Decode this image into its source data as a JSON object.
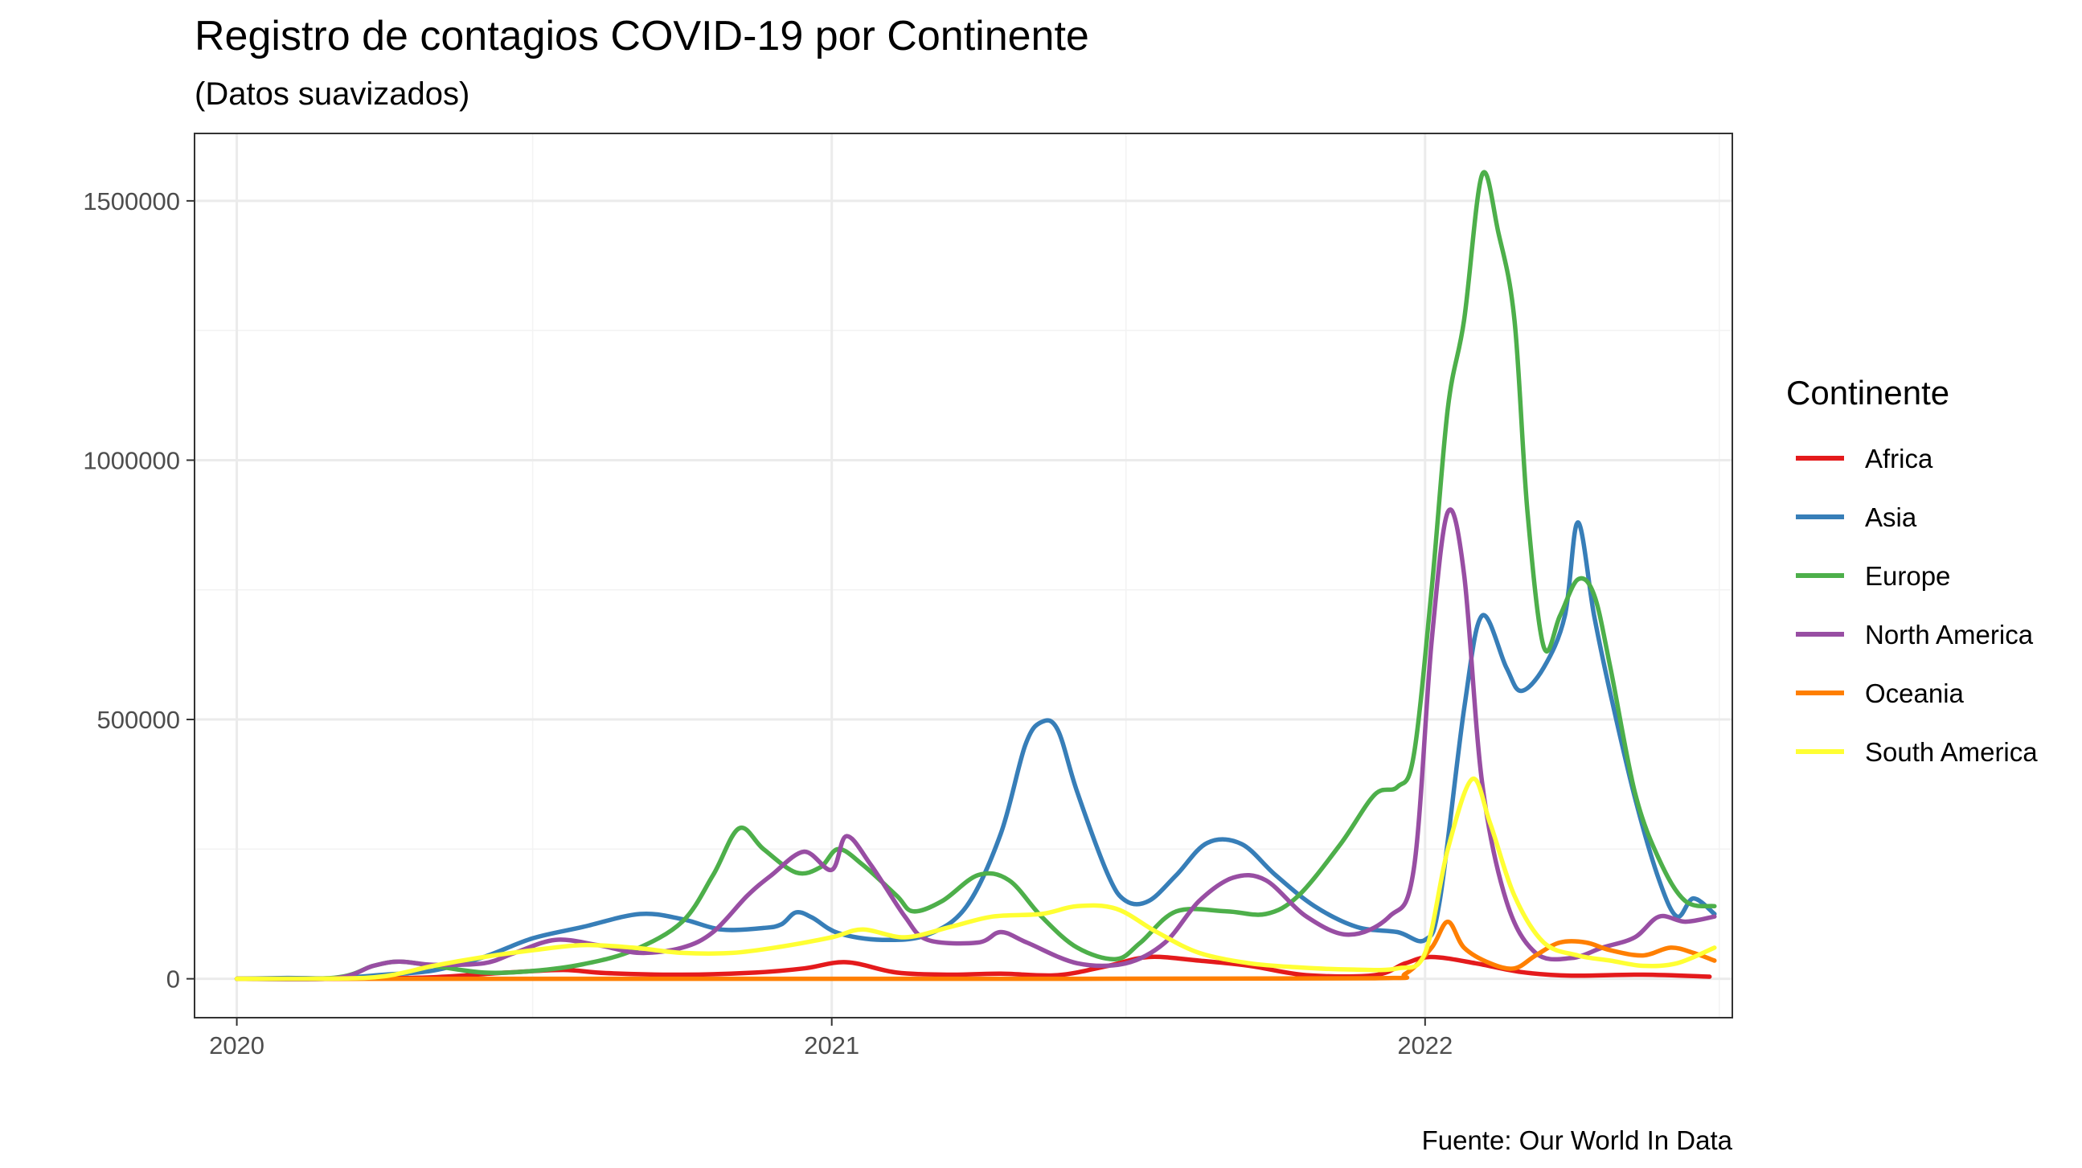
{
  "chart_data": {
    "type": "line",
    "title": "Registro de contagios COVID-19 por Continente",
    "subtitle": "(Datos suavizados)",
    "caption": "Fuente: Our World In Data",
    "xlabel": "",
    "ylabel": "",
    "x_type": "date",
    "xlim": [
      "2019-12-06",
      "2022-07-09"
    ],
    "ylim": [
      -75000,
      1630000
    ],
    "x_ticks": [
      {
        "date": "2020-01-01",
        "label": "2020"
      },
      {
        "date": "2021-01-01",
        "label": "2021"
      },
      {
        "date": "2022-01-01",
        "label": "2022"
      }
    ],
    "x_minor_ticks": [
      "2020-07-01",
      "2021-07-01",
      "2022-07-01"
    ],
    "y_ticks": [
      {
        "value": 0,
        "label": "0"
      },
      {
        "value": 500000,
        "label": "500000"
      },
      {
        "value": 1000000,
        "label": "1000000"
      },
      {
        "value": 1500000,
        "label": "1500000"
      }
    ],
    "y_minor_ticks": [
      250000,
      750000,
      1250000
    ],
    "grid": true,
    "legend": {
      "title": "Continente",
      "position": "right"
    },
    "series": [
      {
        "name": "Africa",
        "color": "#E41A1C",
        "points": [
          [
            "2020-01-01",
            0
          ],
          [
            "2020-03-15",
            300
          ],
          [
            "2020-05-01",
            3000
          ],
          [
            "2020-06-15",
            12000
          ],
          [
            "2020-07-20",
            17000
          ],
          [
            "2020-08-15",
            11000
          ],
          [
            "2020-10-01",
            8000
          ],
          [
            "2020-11-15",
            12000
          ],
          [
            "2020-12-15",
            20000
          ],
          [
            "2021-01-10",
            32000
          ],
          [
            "2021-02-10",
            12000
          ],
          [
            "2021-03-15",
            8000
          ],
          [
            "2021-04-15",
            10000
          ],
          [
            "2021-05-20",
            7000
          ],
          [
            "2021-06-20",
            25000
          ],
          [
            "2021-07-15",
            42000
          ],
          [
            "2021-08-15",
            35000
          ],
          [
            "2021-09-15",
            25000
          ],
          [
            "2021-10-20",
            7000
          ],
          [
            "2021-12-01",
            7000
          ],
          [
            "2021-12-20",
            30000
          ],
          [
            "2022-01-05",
            42000
          ],
          [
            "2022-02-01",
            30000
          ],
          [
            "2022-03-01",
            13000
          ],
          [
            "2022-04-01",
            6000
          ],
          [
            "2022-05-15",
            8000
          ],
          [
            "2022-06-25",
            4000
          ]
        ]
      },
      {
        "name": "Asia",
        "color": "#377EB8",
        "points": [
          [
            "2020-01-01",
            0
          ],
          [
            "2020-02-01",
            1500
          ],
          [
            "2020-03-01",
            1000
          ],
          [
            "2020-04-01",
            8000
          ],
          [
            "2020-05-01",
            16000
          ],
          [
            "2020-06-01",
            42000
          ],
          [
            "2020-07-01",
            78000
          ],
          [
            "2020-08-01",
            100000
          ],
          [
            "2020-09-05",
            125000
          ],
          [
            "2020-10-01",
            115000
          ],
          [
            "2020-10-25",
            95000
          ],
          [
            "2020-11-20",
            98000
          ],
          [
            "2020-12-01",
            105000
          ],
          [
            "2020-12-10",
            128000
          ],
          [
            "2020-12-20",
            118000
          ],
          [
            "2021-01-05",
            88000
          ],
          [
            "2021-02-01",
            75000
          ],
          [
            "2021-03-01",
            85000
          ],
          [
            "2021-03-25",
            140000
          ],
          [
            "2021-04-15",
            280000
          ],
          [
            "2021-04-30",
            450000
          ],
          [
            "2021-05-10",
            495000
          ],
          [
            "2021-05-20",
            480000
          ],
          [
            "2021-06-01",
            360000
          ],
          [
            "2021-06-20",
            200000
          ],
          [
            "2021-07-01",
            150000
          ],
          [
            "2021-07-15",
            150000
          ],
          [
            "2021-08-01",
            200000
          ],
          [
            "2021-08-20",
            262000
          ],
          [
            "2021-09-10",
            260000
          ],
          [
            "2021-10-01",
            200000
          ],
          [
            "2021-10-25",
            140000
          ],
          [
            "2021-11-20",
            100000
          ],
          [
            "2021-12-15",
            90000
          ],
          [
            "2022-01-01",
            75000
          ],
          [
            "2022-01-10",
            150000
          ],
          [
            "2022-01-25",
            520000
          ],
          [
            "2022-02-05",
            700000
          ],
          [
            "2022-02-20",
            600000
          ],
          [
            "2022-03-01",
            555000
          ],
          [
            "2022-03-15",
            600000
          ],
          [
            "2022-03-28",
            700000
          ],
          [
            "2022-04-05",
            880000
          ],
          [
            "2022-04-15",
            700000
          ],
          [
            "2022-04-25",
            550000
          ],
          [
            "2022-05-10",
            350000
          ],
          [
            "2022-05-25",
            190000
          ],
          [
            "2022-06-05",
            120000
          ],
          [
            "2022-06-15",
            155000
          ],
          [
            "2022-06-28",
            125000
          ]
        ]
      },
      {
        "name": "Europe",
        "color": "#4DAF4A",
        "points": [
          [
            "2020-01-01",
            0
          ],
          [
            "2020-03-01",
            2000
          ],
          [
            "2020-03-25",
            25000
          ],
          [
            "2020-04-10",
            33000
          ],
          [
            "2020-05-01",
            25000
          ],
          [
            "2020-06-01",
            12000
          ],
          [
            "2020-07-01",
            15000
          ],
          [
            "2020-08-01",
            28000
          ],
          [
            "2020-09-01",
            55000
          ],
          [
            "2020-10-01",
            110000
          ],
          [
            "2020-10-20",
            200000
          ],
          [
            "2020-11-05",
            290000
          ],
          [
            "2020-11-20",
            250000
          ],
          [
            "2020-12-10",
            205000
          ],
          [
            "2020-12-25",
            215000
          ],
          [
            "2021-01-05",
            250000
          ],
          [
            "2021-01-20",
            220000
          ],
          [
            "2021-02-10",
            160000
          ],
          [
            "2021-02-20",
            130000
          ],
          [
            "2021-03-10",
            150000
          ],
          [
            "2021-04-01",
            200000
          ],
          [
            "2021-04-20",
            190000
          ],
          [
            "2021-05-10",
            120000
          ],
          [
            "2021-06-01",
            60000
          ],
          [
            "2021-06-25",
            38000
          ],
          [
            "2021-07-10",
            70000
          ],
          [
            "2021-08-01",
            130000
          ],
          [
            "2021-09-01",
            130000
          ],
          [
            "2021-09-25",
            125000
          ],
          [
            "2021-10-15",
            160000
          ],
          [
            "2021-11-10",
            260000
          ],
          [
            "2021-12-01",
            355000
          ],
          [
            "2021-12-15",
            370000
          ],
          [
            "2021-12-25",
            430000
          ],
          [
            "2022-01-05",
            750000
          ],
          [
            "2022-01-15",
            1100000
          ],
          [
            "2022-01-25",
            1270000
          ],
          [
            "2022-02-05",
            1550000
          ],
          [
            "2022-02-15",
            1440000
          ],
          [
            "2022-02-25",
            1270000
          ],
          [
            "2022-03-05",
            900000
          ],
          [
            "2022-03-15",
            640000
          ],
          [
            "2022-03-25",
            700000
          ],
          [
            "2022-04-05",
            770000
          ],
          [
            "2022-04-15",
            740000
          ],
          [
            "2022-04-25",
            600000
          ],
          [
            "2022-05-10",
            360000
          ],
          [
            "2022-05-25",
            230000
          ],
          [
            "2022-06-10",
            150000
          ],
          [
            "2022-06-28",
            140000
          ]
        ]
      },
      {
        "name": "North America",
        "color": "#984EA3",
        "points": [
          [
            "2020-01-01",
            0
          ],
          [
            "2020-03-01",
            1000
          ],
          [
            "2020-03-25",
            25000
          ],
          [
            "2020-04-10",
            33000
          ],
          [
            "2020-05-01",
            27000
          ],
          [
            "2020-06-01",
            30000
          ],
          [
            "2020-06-20",
            50000
          ],
          [
            "2020-07-15",
            75000
          ],
          [
            "2020-08-10",
            65000
          ],
          [
            "2020-09-05",
            50000
          ],
          [
            "2020-10-01",
            60000
          ],
          [
            "2020-10-20",
            90000
          ],
          [
            "2020-11-10",
            160000
          ],
          [
            "2020-11-25",
            200000
          ],
          [
            "2020-12-15",
            245000
          ],
          [
            "2021-01-01",
            210000
          ],
          [
            "2021-01-10",
            275000
          ],
          [
            "2021-01-25",
            220000
          ],
          [
            "2021-02-15",
            120000
          ],
          [
            "2021-03-01",
            75000
          ],
          [
            "2021-04-01",
            70000
          ],
          [
            "2021-04-15",
            90000
          ],
          [
            "2021-05-01",
            70000
          ],
          [
            "2021-06-01",
            30000
          ],
          [
            "2021-07-01",
            30000
          ],
          [
            "2021-07-25",
            70000
          ],
          [
            "2021-08-15",
            150000
          ],
          [
            "2021-09-05",
            195000
          ],
          [
            "2021-09-25",
            190000
          ],
          [
            "2021-10-20",
            120000
          ],
          [
            "2021-11-15",
            85000
          ],
          [
            "2021-12-10",
            120000
          ],
          [
            "2021-12-25",
            210000
          ],
          [
            "2022-01-05",
            650000
          ],
          [
            "2022-01-15",
            900000
          ],
          [
            "2022-01-25",
            780000
          ],
          [
            "2022-02-05",
            380000
          ],
          [
            "2022-02-20",
            150000
          ],
          [
            "2022-03-10",
            50000
          ],
          [
            "2022-04-01",
            40000
          ],
          [
            "2022-04-20",
            60000
          ],
          [
            "2022-05-10",
            80000
          ],
          [
            "2022-05-25",
            120000
          ],
          [
            "2022-06-10",
            110000
          ],
          [
            "2022-06-28",
            120000
          ]
        ]
      },
      {
        "name": "Oceania",
        "color": "#FF7F00",
        "points": [
          [
            "2020-01-01",
            0
          ],
          [
            "2021-06-01",
            0
          ],
          [
            "2021-12-01",
            1000
          ],
          [
            "2021-12-20",
            10000
          ],
          [
            "2022-01-05",
            60000
          ],
          [
            "2022-01-15",
            110000
          ],
          [
            "2022-01-25",
            60000
          ],
          [
            "2022-02-10",
            30000
          ],
          [
            "2022-02-25",
            20000
          ],
          [
            "2022-03-10",
            45000
          ],
          [
            "2022-03-25",
            70000
          ],
          [
            "2022-04-10",
            70000
          ],
          [
            "2022-04-25",
            55000
          ],
          [
            "2022-05-15",
            45000
          ],
          [
            "2022-06-01",
            60000
          ],
          [
            "2022-06-15",
            50000
          ],
          [
            "2022-06-28",
            35000
          ]
        ]
      },
      {
        "name": "South America",
        "color": "#FFFF33",
        "points": [
          [
            "2020-01-01",
            0
          ],
          [
            "2020-03-01",
            500
          ],
          [
            "2020-04-01",
            5000
          ],
          [
            "2020-05-01",
            25000
          ],
          [
            "2020-06-01",
            42000
          ],
          [
            "2020-07-01",
            55000
          ],
          [
            "2020-08-01",
            65000
          ],
          [
            "2020-09-01",
            60000
          ],
          [
            "2020-10-01",
            50000
          ],
          [
            "2020-11-01",
            50000
          ],
          [
            "2020-12-01",
            62000
          ],
          [
            "2021-01-01",
            80000
          ],
          [
            "2021-01-20",
            95000
          ],
          [
            "2021-02-15",
            80000
          ],
          [
            "2021-03-15",
            100000
          ],
          [
            "2021-04-10",
            120000
          ],
          [
            "2021-05-10",
            125000
          ],
          [
            "2021-06-01",
            140000
          ],
          [
            "2021-06-25",
            135000
          ],
          [
            "2021-07-20",
            90000
          ],
          [
            "2021-08-15",
            50000
          ],
          [
            "2021-09-15",
            30000
          ],
          [
            "2021-10-15",
            22000
          ],
          [
            "2021-11-15",
            18000
          ],
          [
            "2021-12-15",
            20000
          ],
          [
            "2022-01-01",
            50000
          ],
          [
            "2022-01-15",
            250000
          ],
          [
            "2022-01-30",
            385000
          ],
          [
            "2022-02-10",
            300000
          ],
          [
            "2022-02-25",
            160000
          ],
          [
            "2022-03-15",
            70000
          ],
          [
            "2022-04-05",
            45000
          ],
          [
            "2022-04-25",
            35000
          ],
          [
            "2022-05-15",
            25000
          ],
          [
            "2022-06-05",
            30000
          ],
          [
            "2022-06-28",
            60000
          ]
        ]
      }
    ]
  }
}
